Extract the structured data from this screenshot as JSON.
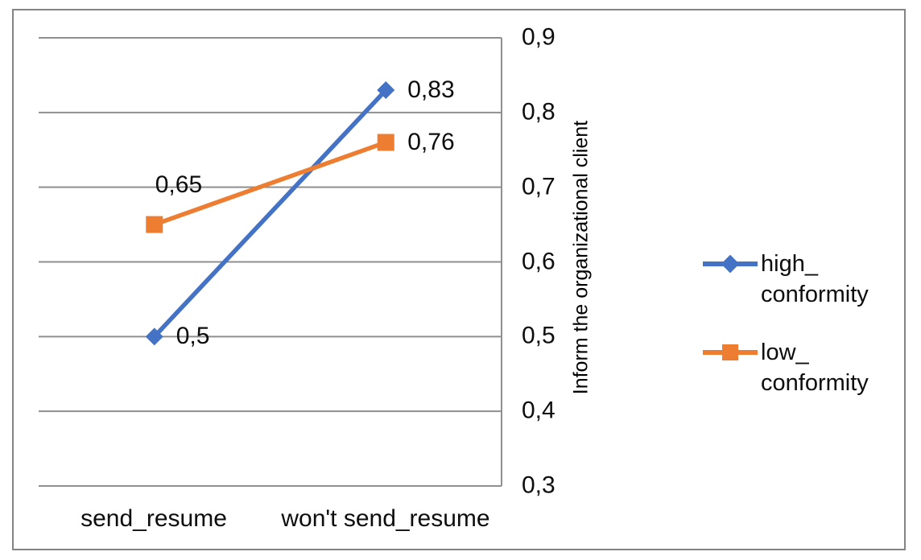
{
  "figure": {
    "background": "#ffffff",
    "border_color": "#848484",
    "grid_color": "#8f8f8f",
    "text_color": "#0d0d0d"
  },
  "chart_data": {
    "type": "line",
    "categories": [
      "send_resume",
      "won't send_resume"
    ],
    "series": [
      {
        "name": "high_conformity",
        "values": [
          0.5,
          0.83
        ],
        "point_labels": [
          "0,5",
          "0,83"
        ],
        "color": "#4472C4",
        "marker": "diamond"
      },
      {
        "name": "low_conformity",
        "values": [
          0.65,
          0.76
        ],
        "point_labels": [
          "0,65",
          "0,76"
        ],
        "color": "#ED7D31",
        "marker": "square"
      }
    ],
    "ylabel": "Inform the organizational client",
    "ylim": [
      0.3,
      0.9
    ],
    "yticks": [
      0.9,
      0.8,
      0.7,
      0.6,
      0.5,
      0.4,
      0.3
    ],
    "ytick_labels": [
      "0,9",
      "0,8",
      "0,7",
      "0,6",
      "0,5",
      "0,4",
      "0,3"
    ],
    "y_axis_side": "right",
    "grid": true,
    "legend": {
      "position": "right",
      "entries": [
        {
          "series": "high_conformity",
          "line1": "high_",
          "line2": "conformity"
        },
        {
          "series": "low_conformity",
          "line1": "low_",
          "line2": "conformity"
        }
      ]
    }
  }
}
